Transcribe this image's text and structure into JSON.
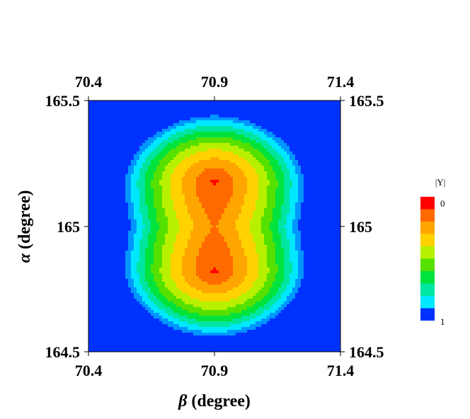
{
  "chart_data": {
    "type": "heatmap",
    "xlabel": {
      "symbol": "β",
      "text": " (degree)"
    },
    "ylabel": {
      "symbol": "α",
      "text": " (degree)"
    },
    "xlim": [
      70.4,
      71.4
    ],
    "ylim": [
      164.5,
      165.5
    ],
    "x_ticks": [
      "70.4",
      "70.9",
      "71.4"
    ],
    "y_ticks": [
      "164.5",
      "165",
      "165.5"
    ],
    "legend": {
      "title": "|Y|",
      "min_label": "0",
      "max_label": "1",
      "placement": "right",
      "levels": 10
    },
    "minima": [
      {
        "x": 70.9,
        "y": 165.2
      },
      {
        "x": 70.9,
        "y": 164.8
      }
    ],
    "colors": [
      "#ff0000",
      "#ff6a00",
      "#ffa500",
      "#ffd200",
      "#b7f000",
      "#55e000",
      "#00e23c",
      "#00e6a0",
      "#00e8ff",
      "#0096ff",
      "#0032ff"
    ]
  }
}
